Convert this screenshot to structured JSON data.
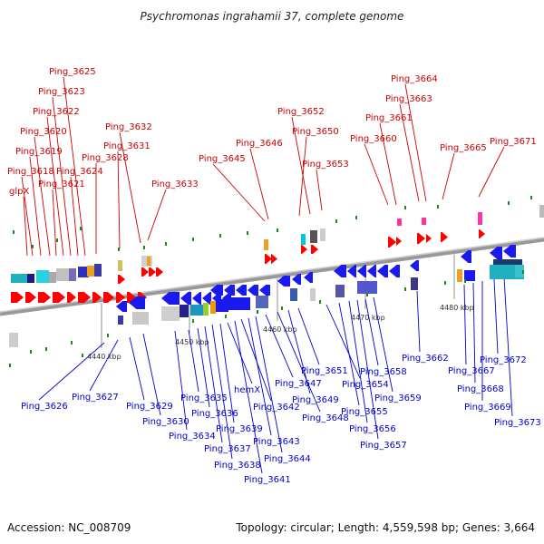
{
  "title": "Psychromonas ingrahamii 37, complete genome",
  "footer": {
    "accession": "Accession: NC_008709",
    "summary": "Topology: circular; Length: 4,559,598 bp; Genes: 3,664"
  },
  "colors": {
    "forward_label": "#cc0000",
    "reverse_label": "#0000cc",
    "forward_arrow": "#ff0000",
    "reverse_arrow": "#1a1aee",
    "backbone": "#888888"
  },
  "ticks": [
    "4440 kbp",
    "4450 kbp",
    "4460 kbp",
    "4470 kbp",
    "4480 kbp"
  ],
  "forward_labels": [
    {
      "id": "glpX"
    },
    {
      "id": "Ping_3618"
    },
    {
      "id": "Ping_3619"
    },
    {
      "id": "Ping_3620"
    },
    {
      "id": "Ping_3621"
    },
    {
      "id": "Ping_3622"
    },
    {
      "id": "Ping_3623"
    },
    {
      "id": "Ping_3624"
    },
    {
      "id": "Ping_3625"
    },
    {
      "id": "Ping_3628"
    },
    {
      "id": "Ping_3631"
    },
    {
      "id": "Ping_3632"
    },
    {
      "id": "Ping_3633"
    },
    {
      "id": "Ping_3645"
    },
    {
      "id": "Ping_3646"
    },
    {
      "id": "Ping_3650"
    },
    {
      "id": "Ping_3652"
    },
    {
      "id": "Ping_3653"
    },
    {
      "id": "Ping_3660"
    },
    {
      "id": "Ping_3661"
    },
    {
      "id": "Ping_3663"
    },
    {
      "id": "Ping_3664"
    },
    {
      "id": "Ping_3665"
    },
    {
      "id": "Ping_3671"
    }
  ],
  "reverse_labels": [
    {
      "id": "Ping_3626"
    },
    {
      "id": "Ping_3627"
    },
    {
      "id": "Ping_3629"
    },
    {
      "id": "Ping_3630"
    },
    {
      "id": "Ping_3634"
    },
    {
      "id": "Ping_3635"
    },
    {
      "id": "Ping_3636"
    },
    {
      "id": "Ping_3637"
    },
    {
      "id": "Ping_3638"
    },
    {
      "id": "Ping_3639"
    },
    {
      "id": "hemX"
    },
    {
      "id": "Ping_3641"
    },
    {
      "id": "Ping_3642"
    },
    {
      "id": "Ping_3643"
    },
    {
      "id": "Ping_3644"
    },
    {
      "id": "Ping_3647"
    },
    {
      "id": "Ping_3648"
    },
    {
      "id": "Ping_3649"
    },
    {
      "id": "Ping_3651"
    },
    {
      "id": "Ping_3654"
    },
    {
      "id": "Ping_3655"
    },
    {
      "id": "Ping_3656"
    },
    {
      "id": "Ping_3657"
    },
    {
      "id": "Ping_3658"
    },
    {
      "id": "Ping_3659"
    },
    {
      "id": "Ping_3662"
    },
    {
      "id": "Ping_3667"
    },
    {
      "id": "Ping_3668"
    },
    {
      "id": "Ping_3669"
    },
    {
      "id": "Ping_3672"
    },
    {
      "id": "Ping_3673"
    }
  ]
}
